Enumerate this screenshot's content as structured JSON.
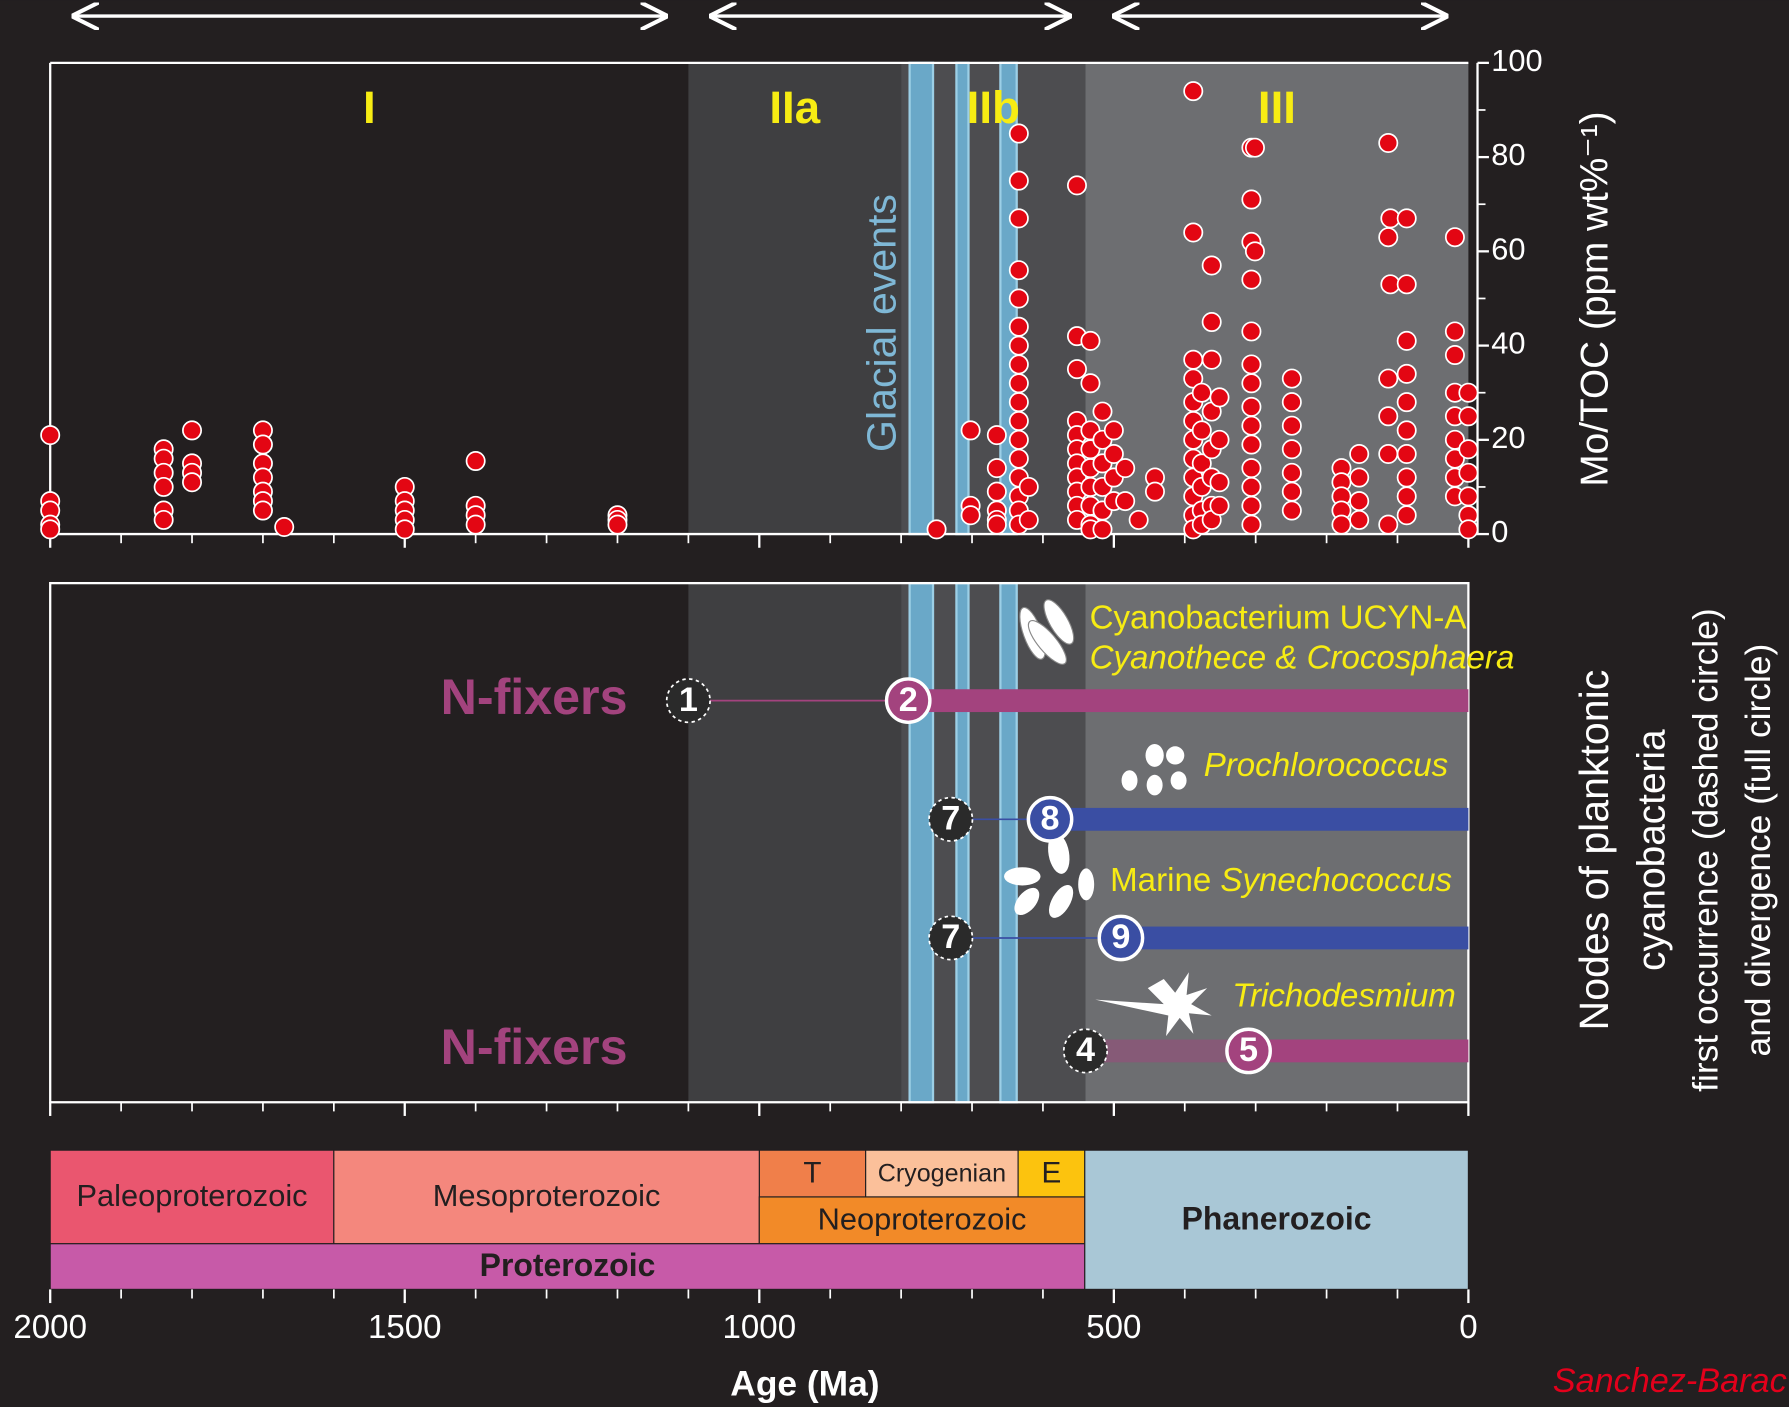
{
  "chart_data": [
    {
      "type": "scatter",
      "ylabel": "Mo/TOC (ppm wt%⁻¹)",
      "annotation": "Glacial events",
      "color": "#e30613",
      "ylim": [
        0,
        100
      ],
      "yticks": [
        0,
        20,
        40,
        60,
        80,
        100
      ],
      "yminorticks": [
        10,
        30,
        50,
        70,
        90
      ],
      "regions": [
        {
          "label": "I",
          "start": 2000,
          "end": 1100,
          "color": "#231f20"
        },
        {
          "label": "IIa",
          "start": 1100,
          "end": 800,
          "color": "#3f3f41"
        },
        {
          "label": "IIb",
          "start": 800,
          "end": 540,
          "color": "#4d4d50"
        },
        {
          "label": "III",
          "start": 540,
          "end": 0,
          "color": "#6d6e71"
        }
      ],
      "glacial_events": [
        [
          788,
          755
        ],
        [
          722,
          705
        ],
        [
          660,
          637
        ]
      ],
      "glacial_color": "#6aa8c8",
      "points": [
        {
          "x": 2000,
          "values": [
            21,
            7,
            5,
            2,
            1
          ]
        },
        {
          "x": 1840,
          "values": [
            18,
            16,
            13,
            10,
            5,
            3
          ]
        },
        {
          "x": 1800,
          "values": [
            22,
            15,
            13,
            11
          ]
        },
        {
          "x": 1700,
          "values": [
            22,
            19,
            15,
            12,
            9,
            7,
            5
          ]
        },
        {
          "x": 1670,
          "values": [
            1.5
          ]
        },
        {
          "x": 1500,
          "values": [
            10,
            7,
            5,
            3,
            1
          ]
        },
        {
          "x": 1400,
          "values": [
            15.5,
            6,
            4,
            2
          ]
        },
        {
          "x": 1200,
          "values": [
            4,
            3,
            2
          ]
        },
        {
          "x": 750,
          "values": [
            1
          ]
        },
        {
          "x": 702,
          "values": [
            22,
            6,
            4
          ]
        },
        {
          "x": 665,
          "values": [
            21,
            14,
            9,
            5,
            3,
            2
          ]
        },
        {
          "x": 634,
          "values": [
            85,
            75,
            67,
            56,
            50,
            44,
            40,
            36,
            32,
            28,
            24,
            20,
            16,
            12,
            8,
            5,
            2
          ]
        },
        {
          "x": 620,
          "values": [
            10,
            3
          ]
        },
        {
          "x": 552,
          "values": [
            74,
            42,
            35,
            24,
            21,
            18,
            15,
            12,
            9,
            6,
            3
          ]
        },
        {
          "x": 533,
          "values": [
            41,
            32,
            22,
            18,
            14,
            10,
            6,
            2,
            1
          ]
        },
        {
          "x": 516,
          "values": [
            26,
            20,
            15,
            10,
            5,
            1
          ]
        },
        {
          "x": 500,
          "values": [
            22,
            17,
            12,
            7
          ]
        },
        {
          "x": 484,
          "values": [
            14,
            7
          ]
        },
        {
          "x": 465,
          "values": [
            3
          ]
        },
        {
          "x": 442,
          "values": [
            12,
            9
          ]
        },
        {
          "x": 388,
          "values": [
            94,
            64,
            37,
            33,
            28,
            24,
            20,
            16,
            12,
            8,
            4,
            1
          ]
        },
        {
          "x": 376,
          "values": [
            30,
            22,
            15,
            10,
            5,
            2
          ]
        },
        {
          "x": 362,
          "values": [
            57,
            45,
            37,
            26,
            18,
            12,
            6,
            3
          ]
        },
        {
          "x": 351,
          "values": [
            29,
            20,
            11,
            6
          ]
        },
        {
          "x": 306,
          "values": [
            82,
            71,
            62,
            54,
            43,
            36,
            32,
            27,
            23,
            19,
            14,
            10,
            6,
            2
          ]
        },
        {
          "x": 301,
          "values": [
            82,
            60
          ]
        },
        {
          "x": 249,
          "values": [
            33,
            28,
            23,
            18,
            13,
            9,
            5
          ]
        },
        {
          "x": 179,
          "values": [
            14,
            11,
            8,
            5,
            2
          ]
        },
        {
          "x": 154,
          "values": [
            17,
            12,
            7,
            3
          ]
        },
        {
          "x": 113,
          "values": [
            83,
            63,
            33,
            25,
            17,
            2
          ]
        },
        {
          "x": 110,
          "values": [
            67,
            53
          ]
        },
        {
          "x": 87,
          "values": [
            67,
            53,
            41,
            34,
            28,
            22,
            17,
            12,
            8,
            4
          ]
        },
        {
          "x": 19,
          "values": [
            63,
            43,
            38,
            30,
            25,
            20,
            16,
            12,
            8
          ]
        },
        {
          "x": 0,
          "values": [
            30,
            25,
            18,
            13,
            8,
            4,
            1
          ]
        }
      ]
    },
    {
      "type": "lineage",
      "ylabel": [
        "Nodes of planktonic",
        "cyanobacteria",
        "first occurrence (dashed circle)",
        "and divergence (full circle)"
      ],
      "lineages": [
        {
          "name": "N-fixers",
          "color": "#a3437e",
          "pre_divergence": "thin",
          "taxa": [
            [
              {
                "text": "Cyanobacterium UCYN-A",
                "italic": false
              }
            ],
            [
              {
                "text": "Cyanothece & Crocosphaera",
                "italic": true
              }
            ]
          ],
          "nodes": [
            {
              "label": "1",
              "age": 1100,
              "circle": "dashed"
            },
            {
              "label": "2",
              "age": 790,
              "circle": "full"
            }
          ]
        },
        {
          "color": "#3a4ea3",
          "pre_divergence": "thin",
          "taxa": [
            [
              {
                "text": "Prochlorococcus",
                "italic": true
              }
            ]
          ],
          "nodes": [
            {
              "label": "7",
              "age": 730,
              "circle": "dashed"
            },
            {
              "label": "8",
              "age": 590,
              "circle": "full"
            }
          ]
        },
        {
          "color": "#3a4ea3",
          "pre_divergence": "thin",
          "taxa": [
            [
              {
                "text": "Marine",
                "italic": false
              },
              {
                "text": "Synechococcus",
                "italic": true
              }
            ]
          ],
          "nodes": [
            {
              "label": "7",
              "age": 730,
              "circle": "dashed"
            },
            {
              "label": "9",
              "age": 490,
              "circle": "full"
            }
          ]
        },
        {
          "name": "N-fixers",
          "color": "#a3437e",
          "pre_divergence": "faint",
          "taxa": [
            [
              {
                "text": "Trichodesmium",
                "italic": true
              }
            ]
          ],
          "nodes": [
            {
              "label": "4",
              "age": 540,
              "circle": "dashed"
            },
            {
              "label": "5",
              "age": 310,
              "circle": "full"
            }
          ]
        }
      ]
    },
    {
      "type": "eras",
      "xlabel": "Age (Ma)",
      "credit": "Sanchez-Barac",
      "xlim": [
        2000,
        0
      ],
      "xticks": [
        2000,
        1500,
        1000,
        500,
        0
      ],
      "xminorticks": [
        1900,
        1800,
        1700,
        1600,
        1400,
        1300,
        1200,
        1100,
        900,
        800,
        700,
        600,
        400,
        300,
        200,
        100
      ],
      "periods": [
        {
          "name": "T",
          "start": 1000,
          "end": 850,
          "color": "#f07f4a"
        },
        {
          "name": "Cryogenian",
          "start": 850,
          "end": 635,
          "color": "#fbc09a"
        },
        {
          "name": "E",
          "start": 635,
          "end": 541,
          "color": "#fcc30e"
        }
      ],
      "eras": [
        {
          "name": "Paleoproterozoic",
          "start": 2000,
          "end": 1600,
          "color": "#ea566f"
        },
        {
          "name": "Mesoproterozoic",
          "start": 1600,
          "end": 1000,
          "color": "#f4877d"
        },
        {
          "name": "Neoproterozoic",
          "start": 1000,
          "end": 541,
          "color": "#f28a28"
        }
      ],
      "eons": [
        {
          "name": "Proterozoic",
          "start": 2000,
          "end": 541,
          "color": "#c75aa8"
        },
        {
          "name": "Phanerozoic",
          "start": 541,
          "end": 0,
          "color": "#a9c7d6"
        }
      ]
    }
  ]
}
